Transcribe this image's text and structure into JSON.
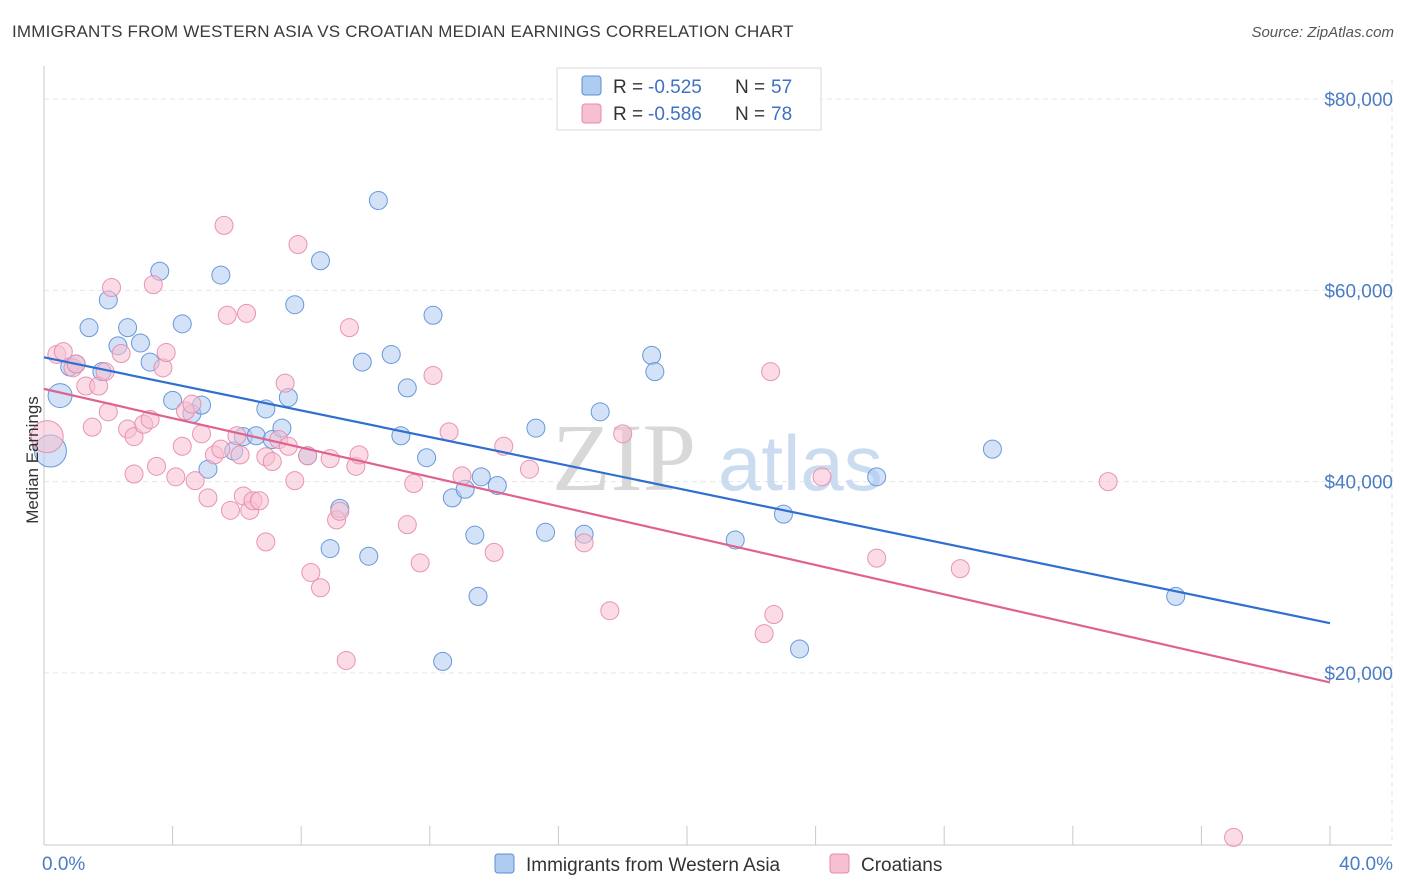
{
  "title": "IMMIGRANTS FROM WESTERN ASIA VS CROATIAN MEDIAN EARNINGS CORRELATION CHART",
  "source": "Source: ZipAtlas.com",
  "watermark": {
    "zip": "ZIP",
    "atlas": "atlas"
  },
  "colors": {
    "blue_fill": "#aecbf0",
    "blue_stroke": "#5b8ed6",
    "blue_line": "#2f6fd0",
    "pink_fill": "#f7bfd2",
    "pink_stroke": "#e58aab",
    "pink_line": "#e0628f",
    "grid": "#e6e6e6",
    "axis_text": "#4a7cc4"
  },
  "legend": {
    "rows": [
      {
        "r_label": "R = ",
        "r_value": "-0.525",
        "n_label": "N = ",
        "n_value": "57"
      },
      {
        "r_label": "R = ",
        "r_value": "-0.586",
        "n_label": "N = ",
        "n_value": "78"
      }
    ]
  },
  "chart_data": {
    "type": "scatter",
    "ylabel": "Median Earnings",
    "xlim": [
      0,
      40
    ],
    "ylim": [
      2000,
      82000
    ],
    "x_tick_labels": [
      "0.0%",
      "40.0%"
    ],
    "y_ticks": [
      {
        "value": 20000,
        "label": "$20,000"
      },
      {
        "value": 40000,
        "label": "$40,000"
      },
      {
        "value": 60000,
        "label": "$60,000"
      },
      {
        "value": 80000,
        "label": "$80,000"
      }
    ],
    "series": [
      {
        "name": "Immigrants from Western Asia",
        "trend": {
          "x": [
            0,
            40
          ],
          "y": [
            53000,
            25200
          ]
        },
        "points": [
          [
            0.2,
            43200,
            16
          ],
          [
            0.5,
            49000,
            12
          ],
          [
            0.8,
            52000,
            9
          ],
          [
            1.0,
            52300,
            9
          ],
          [
            1.4,
            56100,
            9
          ],
          [
            1.8,
            51500,
            9
          ],
          [
            2.0,
            59000,
            9
          ],
          [
            2.3,
            54200,
            9
          ],
          [
            2.6,
            56100,
            9
          ],
          [
            3.0,
            54500,
            9
          ],
          [
            3.3,
            52500,
            9
          ],
          [
            3.6,
            62000,
            9
          ],
          [
            4.0,
            48500,
            9
          ],
          [
            4.3,
            56500,
            9
          ],
          [
            4.6,
            47100,
            9
          ],
          [
            4.9,
            48000,
            9
          ],
          [
            5.1,
            41300,
            9
          ],
          [
            5.5,
            61600,
            9
          ],
          [
            5.9,
            43200,
            9
          ],
          [
            6.2,
            44700,
            9
          ],
          [
            6.6,
            44800,
            9
          ],
          [
            6.9,
            47600,
            9
          ],
          [
            7.1,
            44400,
            9
          ],
          [
            7.4,
            45600,
            9
          ],
          [
            7.6,
            48800,
            9
          ],
          [
            7.8,
            58500,
            9
          ],
          [
            8.2,
            42700,
            9
          ],
          [
            8.6,
            63100,
            9
          ],
          [
            8.9,
            33000,
            9
          ],
          [
            9.2,
            37200,
            9
          ],
          [
            10.1,
            32200,
            9
          ],
          [
            9.9,
            52500,
            9
          ],
          [
            10.4,
            69400,
            9
          ],
          [
            10.8,
            53300,
            9
          ],
          [
            11.1,
            44800,
            9
          ],
          [
            11.3,
            49800,
            9
          ],
          [
            11.9,
            42500,
            9
          ],
          [
            12.1,
            57400,
            9
          ],
          [
            12.7,
            38300,
            9
          ],
          [
            12.4,
            21200,
            9
          ],
          [
            13.1,
            39200,
            9
          ],
          [
            13.4,
            34400,
            9
          ],
          [
            13.5,
            28000,
            9
          ],
          [
            13.6,
            40500,
            9
          ],
          [
            14.1,
            39600,
            9
          ],
          [
            15.3,
            45600,
            9
          ],
          [
            15.6,
            34700,
            9
          ],
          [
            16.8,
            34500,
            9
          ],
          [
            17.3,
            47300,
            9
          ],
          [
            18.9,
            53200,
            9
          ],
          [
            19.0,
            51500,
            9
          ],
          [
            21.5,
            33900,
            9
          ],
          [
            23.0,
            36600,
            9
          ],
          [
            23.5,
            22500,
            9
          ],
          [
            25.9,
            40500,
            9
          ],
          [
            29.5,
            43400,
            9
          ],
          [
            35.2,
            28000,
            9
          ]
        ]
      },
      {
        "name": "Croatians",
        "trend": {
          "x": [
            0,
            40
          ],
          "y": [
            49700,
            19000
          ]
        },
        "points": [
          [
            0.1,
            44700,
            16
          ],
          [
            0.4,
            53300,
            9
          ],
          [
            0.6,
            53600,
            9
          ],
          [
            0.9,
            51900,
            9
          ],
          [
            1.0,
            52300,
            9
          ],
          [
            1.3,
            50000,
            9
          ],
          [
            1.5,
            45700,
            9
          ],
          [
            1.7,
            50000,
            9
          ],
          [
            1.9,
            51500,
            9
          ],
          [
            2.0,
            47300,
            9
          ],
          [
            2.1,
            60300,
            9
          ],
          [
            2.4,
            53400,
            9
          ],
          [
            2.6,
            45500,
            9
          ],
          [
            2.8,
            44700,
            9
          ],
          [
            2.8,
            40800,
            9
          ],
          [
            3.1,
            46000,
            9
          ],
          [
            3.3,
            46500,
            9
          ],
          [
            3.4,
            60600,
            9
          ],
          [
            3.5,
            41600,
            9
          ],
          [
            3.7,
            51900,
            9
          ],
          [
            3.8,
            53500,
            9
          ],
          [
            4.1,
            40500,
            9
          ],
          [
            4.3,
            43700,
            9
          ],
          [
            4.4,
            47400,
            9
          ],
          [
            4.6,
            48100,
            9
          ],
          [
            4.7,
            40100,
            9
          ],
          [
            4.9,
            45000,
            9
          ],
          [
            5.1,
            38300,
            9
          ],
          [
            5.3,
            42800,
            9
          ],
          [
            5.5,
            43400,
            9
          ],
          [
            5.7,
            57400,
            9
          ],
          [
            5.6,
            66800,
            9
          ],
          [
            5.8,
            37000,
            9
          ],
          [
            6.0,
            44800,
            9
          ],
          [
            6.1,
            42800,
            9
          ],
          [
            6.2,
            38500,
            9
          ],
          [
            6.3,
            57600,
            9
          ],
          [
            6.4,
            37000,
            9
          ],
          [
            6.5,
            38000,
            9
          ],
          [
            6.7,
            38000,
            9
          ],
          [
            6.9,
            42600,
            9
          ],
          [
            6.9,
            33700,
            9
          ],
          [
            7.1,
            42100,
            9
          ],
          [
            7.3,
            44400,
            9
          ],
          [
            7.5,
            50300,
            9
          ],
          [
            7.6,
            43700,
            9
          ],
          [
            7.8,
            40100,
            9
          ],
          [
            7.9,
            64800,
            9
          ],
          [
            8.2,
            42700,
            9
          ],
          [
            8.3,
            30500,
            9
          ],
          [
            8.6,
            28900,
            9
          ],
          [
            8.9,
            42400,
            9
          ],
          [
            9.1,
            36000,
            9
          ],
          [
            9.2,
            36900,
            9
          ],
          [
            9.4,
            21300,
            9
          ],
          [
            9.5,
            56100,
            9
          ],
          [
            9.7,
            41600,
            9
          ],
          [
            9.8,
            42800,
            9
          ],
          [
            11.3,
            35500,
            9
          ],
          [
            11.5,
            39800,
            9
          ],
          [
            11.7,
            31500,
            9
          ],
          [
            12.1,
            51100,
            9
          ],
          [
            12.6,
            45200,
            9
          ],
          [
            13.0,
            40600,
            9
          ],
          [
            14.0,
            32600,
            9
          ],
          [
            14.3,
            43700,
            9
          ],
          [
            15.1,
            41300,
            9
          ],
          [
            16.8,
            33600,
            9
          ],
          [
            17.6,
            26500,
            9
          ],
          [
            18.0,
            45000,
            9
          ],
          [
            22.4,
            24100,
            9
          ],
          [
            22.6,
            51500,
            9
          ],
          [
            22.7,
            26100,
            9
          ],
          [
            24.2,
            40500,
            9
          ],
          [
            25.9,
            32000,
            9
          ],
          [
            28.5,
            30900,
            9
          ],
          [
            33.1,
            40000,
            9
          ],
          [
            37.0,
            2800,
            9
          ]
        ]
      }
    ]
  }
}
